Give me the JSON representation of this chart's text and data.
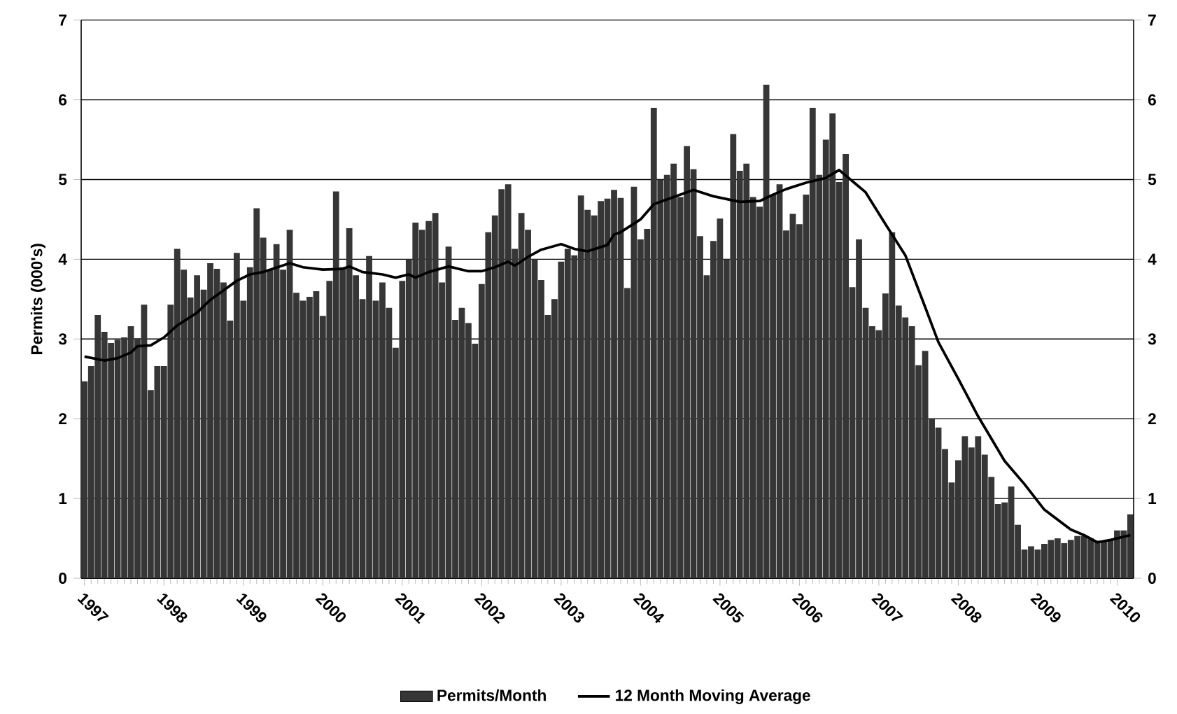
{
  "chart_data": {
    "type": "bar",
    "ylabel": "Permits (000's)",
    "xlim": [
      "1996-12-16",
      "2010-03-16"
    ],
    "xticks": [
      "1997",
      "1998",
      "1999",
      "2000",
      "2001",
      "2002",
      "2003",
      "2004",
      "2005",
      "2006",
      "2007",
      "2008",
      "2009",
      "2010"
    ],
    "ylim": [
      0,
      7
    ],
    "yticks": [
      0,
      1,
      2,
      3,
      4,
      5,
      6,
      7
    ],
    "y2lim": [
      0,
      7
    ],
    "y2ticks": [
      0,
      1,
      2,
      3,
      4,
      5,
      6,
      7
    ],
    "grid": "y",
    "legend": "bottom",
    "series": [
      {
        "name": "Permits/Month",
        "color": "#363636",
        "x": [
          "1997-01",
          "1997-02",
          "1997-03",
          "1997-04",
          "1997-05",
          "1997-06",
          "1997-07",
          "1997-08",
          "1997-09",
          "1997-10",
          "1997-11",
          "1997-12",
          "1998-01",
          "1998-02",
          "1998-03",
          "1998-04",
          "1998-05",
          "1998-06",
          "1998-07",
          "1998-08",
          "1998-09",
          "1998-10",
          "1998-11",
          "1998-12",
          "1999-01",
          "1999-02",
          "1999-03",
          "1999-04",
          "1999-05",
          "1999-06",
          "1999-07",
          "1999-08",
          "1999-09",
          "1999-10",
          "1999-11",
          "1999-12",
          "2000-01",
          "2000-02",
          "2000-03",
          "2000-04",
          "2000-05",
          "2000-06",
          "2000-07",
          "2000-08",
          "2000-09",
          "2000-10",
          "2000-11",
          "2000-12",
          "2001-01",
          "2001-02",
          "2001-03",
          "2001-04",
          "2001-05",
          "2001-06",
          "2001-07",
          "2001-08",
          "2001-09",
          "2001-10",
          "2001-11",
          "2001-12",
          "2002-01",
          "2002-02",
          "2002-03",
          "2002-04",
          "2002-05",
          "2002-06",
          "2002-07",
          "2002-08",
          "2002-09",
          "2002-10",
          "2002-11",
          "2002-12",
          "2003-01",
          "2003-02",
          "2003-03",
          "2003-04",
          "2003-05",
          "2003-06",
          "2003-07",
          "2003-08",
          "2003-09",
          "2003-10",
          "2003-11",
          "2003-12",
          "2004-01",
          "2004-02",
          "2004-03",
          "2004-04",
          "2004-05",
          "2004-06",
          "2004-07",
          "2004-08",
          "2004-09",
          "2004-10",
          "2004-11",
          "2004-12",
          "2005-01",
          "2005-02",
          "2005-03",
          "2005-04",
          "2005-05",
          "2005-06",
          "2005-07",
          "2005-08",
          "2005-09",
          "2005-10",
          "2005-11",
          "2005-12",
          "2006-01",
          "2006-02",
          "2006-03",
          "2006-04",
          "2006-05",
          "2006-06",
          "2006-07",
          "2006-08",
          "2006-09",
          "2006-10",
          "2006-11",
          "2006-12",
          "2007-01",
          "2007-02",
          "2007-03",
          "2007-04",
          "2007-05",
          "2007-06",
          "2007-07",
          "2007-08",
          "2007-09",
          "2007-10",
          "2007-11",
          "2007-12",
          "2008-01",
          "2008-02",
          "2008-03",
          "2008-04",
          "2008-05",
          "2008-06",
          "2008-07",
          "2008-08",
          "2008-09",
          "2008-10",
          "2008-11",
          "2008-12",
          "2009-01",
          "2009-02",
          "2009-03",
          "2009-04",
          "2009-05",
          "2009-06",
          "2009-07",
          "2009-08",
          "2009-09",
          "2009-10",
          "2009-11",
          "2009-12",
          "2010-01",
          "2010-02",
          "2010-03"
        ],
        "values": [
          2.47,
          2.66,
          3.3,
          3.09,
          2.95,
          2.99,
          3.02,
          3.16,
          3.01,
          3.43,
          2.36,
          2.66,
          2.66,
          3.43,
          4.13,
          3.87,
          3.52,
          3.8,
          3.62,
          3.95,
          3.88,
          3.71,
          3.23,
          4.08,
          3.48,
          3.9,
          4.64,
          4.27,
          3.87,
          4.19,
          3.87,
          4.37,
          3.58,
          3.48,
          3.53,
          3.6,
          3.29,
          3.73,
          4.85,
          3.9,
          4.39,
          3.8,
          3.5,
          4.04,
          3.48,
          3.71,
          3.39,
          2.89,
          3.73,
          4.0,
          4.46,
          4.37,
          4.48,
          4.58,
          3.71,
          4.16,
          3.24,
          3.39,
          3.2,
          2.94,
          3.69,
          4.34,
          4.55,
          4.88,
          4.94,
          4.13,
          4.58,
          4.37,
          4.0,
          3.74,
          3.3,
          3.5,
          3.97,
          4.13,
          4.05,
          4.8,
          4.62,
          4.55,
          4.73,
          4.76,
          4.87,
          4.77,
          3.64,
          4.91,
          4.25,
          4.38,
          5.9,
          5.0,
          5.06,
          5.2,
          4.78,
          5.42,
          5.13,
          4.29,
          3.8,
          4.23,
          4.51,
          4.0,
          5.57,
          5.11,
          5.2,
          4.78,
          4.66,
          6.19,
          4.81,
          4.94,
          4.36,
          4.57,
          4.44,
          4.81,
          5.9,
          5.06,
          5.5,
          5.83,
          4.97,
          5.32,
          3.65,
          4.25,
          3.39,
          3.16,
          3.11,
          3.57,
          4.34,
          3.42,
          3.27,
          3.16,
          2.67,
          2.85,
          2.0,
          1.89,
          1.62,
          1.2,
          1.48,
          1.78,
          1.64,
          1.78,
          1.55,
          1.27,
          0.93,
          0.95,
          1.15,
          0.67,
          0.36,
          0.4,
          0.36,
          0.43,
          0.48,
          0.5,
          0.44,
          0.48,
          0.53,
          0.53,
          0.5,
          0.47,
          0.47,
          0.48,
          0.6,
          0.6,
          0.8
        ]
      },
      {
        "name": "12 Month Moving Average",
        "type": "line",
        "color": "#000000",
        "x": [
          "1997-01",
          "1997-04",
          "1997-06",
          "1997-08",
          "1997-09",
          "1997-11",
          "1998-01",
          "1998-03",
          "1998-06",
          "1998-08",
          "1998-10",
          "1998-12",
          "1999-02",
          "1999-04",
          "1999-08",
          "1999-10",
          "2000-01",
          "2000-04",
          "2000-05",
          "2000-07",
          "2000-10",
          "2000-12",
          "2001-02",
          "2001-03",
          "2001-05",
          "2001-08",
          "2001-11",
          "2002-01",
          "2002-03",
          "2002-05",
          "2002-06",
          "2002-08",
          "2002-10",
          "2003-01",
          "2003-03",
          "2003-05",
          "2003-08",
          "2003-09",
          "2003-10",
          "2004-01",
          "2004-03",
          "2004-06",
          "2004-09",
          "2004-12",
          "2005-04",
          "2005-07",
          "2005-09",
          "2005-11",
          "2006-02",
          "2006-05",
          "2006-07",
          "2006-09",
          "2006-11",
          "2007-02",
          "2007-05",
          "2007-08",
          "2007-10",
          "2008-01",
          "2008-04",
          "2008-08",
          "2008-11",
          "2009-02",
          "2009-06",
          "2009-08",
          "2009-10",
          "2009-12",
          "2010-03"
        ],
        "values": [
          2.78,
          2.73,
          2.76,
          2.83,
          2.91,
          2.92,
          3.02,
          3.17,
          3.33,
          3.49,
          3.61,
          3.73,
          3.81,
          3.84,
          3.95,
          3.9,
          3.87,
          3.88,
          3.91,
          3.84,
          3.81,
          3.77,
          3.81,
          3.77,
          3.84,
          3.91,
          3.85,
          3.85,
          3.9,
          3.97,
          3.92,
          4.03,
          4.12,
          4.19,
          4.13,
          4.1,
          4.18,
          4.31,
          4.34,
          4.5,
          4.69,
          4.78,
          4.87,
          4.79,
          4.72,
          4.73,
          4.81,
          4.88,
          4.96,
          5.02,
          5.12,
          4.98,
          4.84,
          4.44,
          4.05,
          3.4,
          2.96,
          2.5,
          2.03,
          1.47,
          1.18,
          0.86,
          0.61,
          0.54,
          0.45,
          0.48,
          0.54
        ]
      }
    ]
  }
}
